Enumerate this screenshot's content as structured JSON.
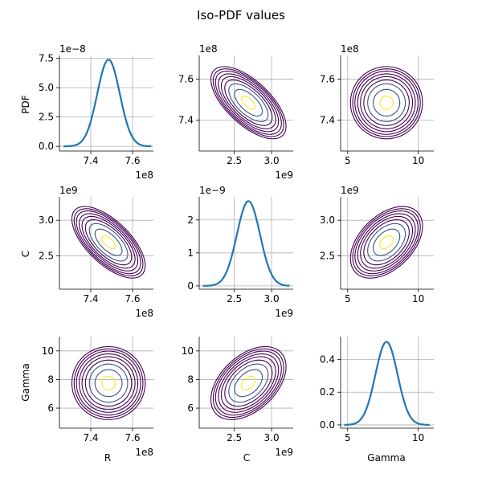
{
  "chart_data": {
    "type": "pair-plot",
    "title": "Iso-PDF values",
    "variables": [
      "R",
      "C",
      "Gamma"
    ],
    "marginal_pdfs": [
      {
        "variable": "R",
        "type": "line",
        "xlim": [
          725000000,
          770000000
        ],
        "xticks": [
          740000000,
          760000000
        ],
        "xtick_labels": [
          "7.4",
          "7.6"
        ],
        "x_offset_label": "1e8",
        "ylim": [
          -4e-09,
          7.75e-08
        ],
        "yticks": [
          0,
          2.5e-08,
          5e-08,
          7.5e-08
        ],
        "ytick_labels": [
          "0.0",
          "2.5",
          "5.0",
          "7.5"
        ],
        "y_offset_label": "1e−8",
        "mean": 748500000,
        "std": 5400000,
        "x_range": [
          727000000,
          769000000
        ],
        "peak": 7.39e-08
      },
      {
        "variable": "C",
        "type": "line",
        "xlim": [
          2030000000,
          3290000000
        ],
        "xticks": [
          2500000000,
          3000000000
        ],
        "xtick_labels": [
          "2.5",
          "3.0"
        ],
        "x_offset_label": "1e9",
        "ylim": [
          -1e-10,
          2.7e-09
        ],
        "yticks": [
          0,
          1e-09,
          2e-09
        ],
        "ytick_labels": [
          "0",
          "1",
          "2"
        ],
        "y_offset_label": "1e−9",
        "mean": 2690000000,
        "std": 155000000,
        "x_range": [
          2080000000,
          3240000000
        ],
        "peak": 2.57e-09
      },
      {
        "variable": "Gamma",
        "type": "line",
        "xlim": [
          4.5,
          11.1
        ],
        "xticks": [
          5,
          10
        ],
        "xtick_labels": [
          "5",
          "10"
        ],
        "x_offset_label": "",
        "ylim": [
          -0.02,
          0.54
        ],
        "yticks": [
          0,
          0.2,
          0.4
        ],
        "ytick_labels": [
          "0.0",
          "0.2",
          "0.4"
        ],
        "y_offset_label": "",
        "mean": 7.75,
        "std": 0.785,
        "x_range": [
          4.75,
          10.8
        ],
        "peak": 0.508
      }
    ],
    "contour_panels": [
      {
        "row": 0,
        "col": 1,
        "x": "C",
        "y": "R",
        "correlation": -0.65
      },
      {
        "row": 0,
        "col": 2,
        "x": "Gamma",
        "y": "R",
        "correlation": 0
      },
      {
        "row": 1,
        "col": 0,
        "x": "R",
        "y": "C",
        "correlation": -0.65
      },
      {
        "row": 1,
        "col": 2,
        "x": "Gamma",
        "y": "C",
        "correlation": 0.45
      },
      {
        "row": 2,
        "col": 0,
        "x": "R",
        "y": "Gamma",
        "correlation": 0
      },
      {
        "row": 2,
        "col": 1,
        "x": "C",
        "y": "Gamma",
        "correlation": 0.45
      }
    ],
    "contour_levels_sigma": [
      0.6,
      1.2,
      1.7,
      2.05,
      2.35,
      2.6,
      2.85,
      3.05,
      3.25
    ],
    "contour_colors": [
      "#fde725",
      "#3b528b",
      "#3b528b",
      "#440154",
      "#440154",
      "#440154",
      "#440154",
      "#440154",
      "#440154"
    ],
    "axis_limits": {
      "R": {
        "lim": [
          725000000,
          770000000
        ],
        "ticks": [
          740000000,
          760000000
        ],
        "tick_labels": [
          "7.4",
          "7.6"
        ],
        "offset_label": "1e8"
      },
      "C": {
        "lim": [
          2030000000,
          3290000000
        ],
        "ticks": [
          2500000000,
          3000000000
        ],
        "tick_labels": [
          "2.5",
          "3.0"
        ],
        "offset_label": "1e9"
      },
      "Gamma": {
        "lim": [
          4.5,
          11.1
        ],
        "ticks": [
          5,
          10
        ],
        "tick_labels": [
          "5",
          "10"
        ],
        "offset_label": ""
      }
    },
    "axis_limits_contour_y": {
      "R": {
        "lim": [
          725000000,
          771500000
        ],
        "ticks": [
          740000000,
          760000000
        ],
        "tick_labels": [
          "7.4",
          "7.6"
        ],
        "offset_label": "1e8"
      },
      "C": {
        "lim": [
          2030000000,
          3330000000
        ],
        "ticks": [
          2500000000,
          3000000000
        ],
        "tick_labels": [
          "2.5",
          "3.0"
        ],
        "offset_label": "1e9"
      },
      "Gamma": {
        "lim": [
          4.6,
          11.0
        ],
        "ticks": [
          6,
          8,
          10
        ],
        "tick_labels": [
          "6",
          "8",
          "10"
        ],
        "offset_label": ""
      }
    },
    "ylabels": [
      "PDF",
      "C",
      "Gamma"
    ],
    "xlabels": [
      "R",
      "C",
      "Gamma"
    ],
    "grid": true,
    "line_color": "#1f77b4"
  }
}
